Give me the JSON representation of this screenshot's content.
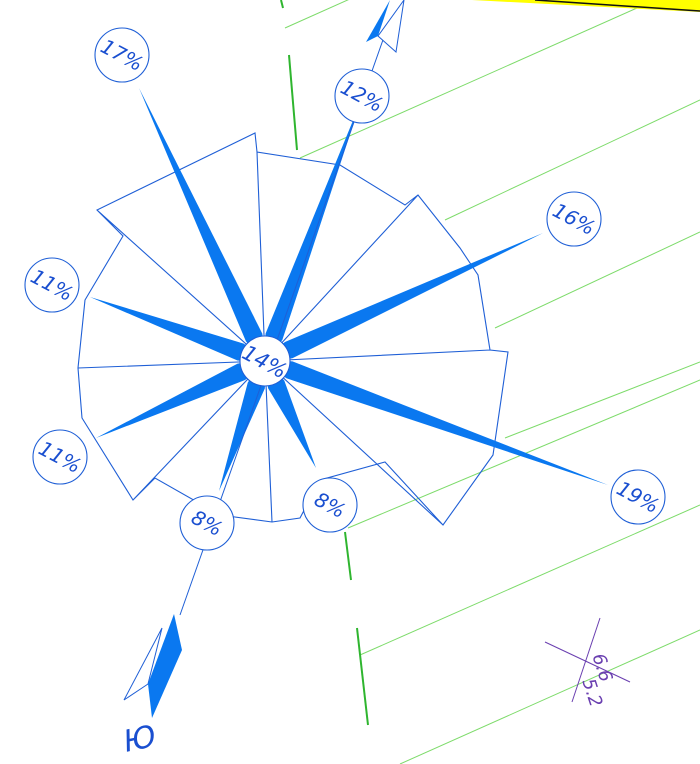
{
  "colors": {
    "outline": "#1f5fd6",
    "rays": "#0a78f0",
    "grid_green": "#7ddb6a",
    "axis_green": "#2fb52f",
    "highlight": "#ffff00",
    "mark_purple": "#6a3fb0"
  },
  "rose": {
    "center_label": "14%",
    "rays": [
      {
        "id": "nne",
        "label": "12%"
      },
      {
        "id": "ene",
        "label": "16%"
      },
      {
        "id": "ese",
        "label": "19%"
      },
      {
        "id": "sse",
        "label": "8%"
      },
      {
        "id": "ssw",
        "label": "8%"
      },
      {
        "id": "wsw",
        "label": "11%"
      },
      {
        "id": "wnw",
        "label": "11%"
      },
      {
        "id": "nnw",
        "label": "17%"
      }
    ]
  },
  "north_arrow": {
    "south_letter": "Ю"
  },
  "elevation_mark": {
    "top": "6.6",
    "bottom": "5.2"
  }
}
